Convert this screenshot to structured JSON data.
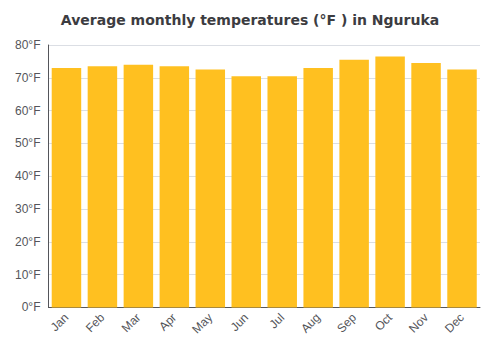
{
  "chart_data": {
    "type": "bar",
    "title": "Average monthly temperatures (°F ) in Nguruka",
    "categories": [
      "Jan",
      "Feb",
      "Mar",
      "Apr",
      "May",
      "Jun",
      "Jul",
      "Aug",
      "Sep",
      "Oct",
      "Nov",
      "Dec"
    ],
    "values": [
      73,
      73.5,
      74,
      73.5,
      72.5,
      70.5,
      70.5,
      73,
      75.5,
      76.5,
      74.5,
      72.5
    ],
    "color": "#FFC020",
    "ylim": [
      0,
      80
    ],
    "yticks": [
      {
        "value": 0,
        "label": "0°F"
      },
      {
        "value": 10,
        "label": "10°F"
      },
      {
        "value": 20,
        "label": "20°F"
      },
      {
        "value": 30,
        "label": "30°F"
      },
      {
        "value": 40,
        "label": "40°F"
      },
      {
        "value": 50,
        "label": "50°F"
      },
      {
        "value": 60,
        "label": "60°F"
      },
      {
        "value": 70,
        "label": "70°F"
      },
      {
        "value": 80,
        "label": "80°F"
      }
    ],
    "grid": true
  }
}
